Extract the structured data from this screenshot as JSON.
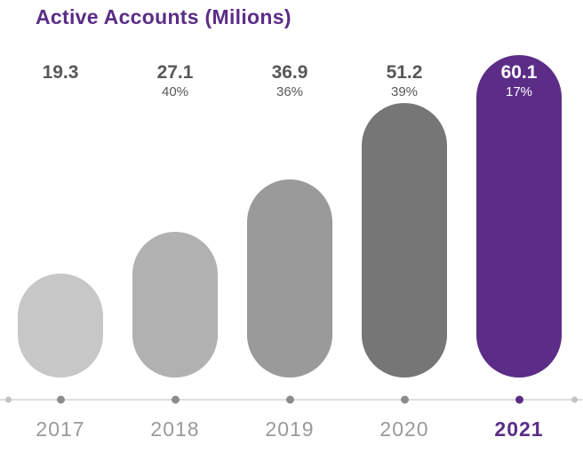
{
  "chart_data": {
    "type": "bar",
    "title": "Active Accounts (Milions)",
    "categories": [
      "2017",
      "2018",
      "2019",
      "2020",
      "2021"
    ],
    "values": [
      19.3,
      27.1,
      36.9,
      51.2,
      60.1
    ],
    "value_labels": [
      "19.3",
      "27.1",
      "36.9",
      "51.2",
      "60.1"
    ],
    "growth_pct": [
      "",
      "40%",
      "36%",
      "39%",
      "17%"
    ],
    "bar_colors": [
      "#c7c7c7",
      "#b1b1b1",
      "#9a9a9a",
      "#767676",
      "#5b2d87"
    ],
    "dot_colors": [
      "#8c8c8c",
      "#8c8c8c",
      "#8c8c8c",
      "#8c8c8c",
      "#5b2d87"
    ],
    "highlight_index": 4,
    "ylim": [
      0,
      60.1
    ],
    "xlabel": "",
    "ylabel": "",
    "grid": false,
    "legend": "none"
  },
  "colors": {
    "accent": "#5b2d87",
    "axis_line": "#dedede",
    "end_dot": "#c2c2c2",
    "label_text": "#58585a",
    "year_text": "#9a9a9c",
    "background": "#ffffff"
  }
}
